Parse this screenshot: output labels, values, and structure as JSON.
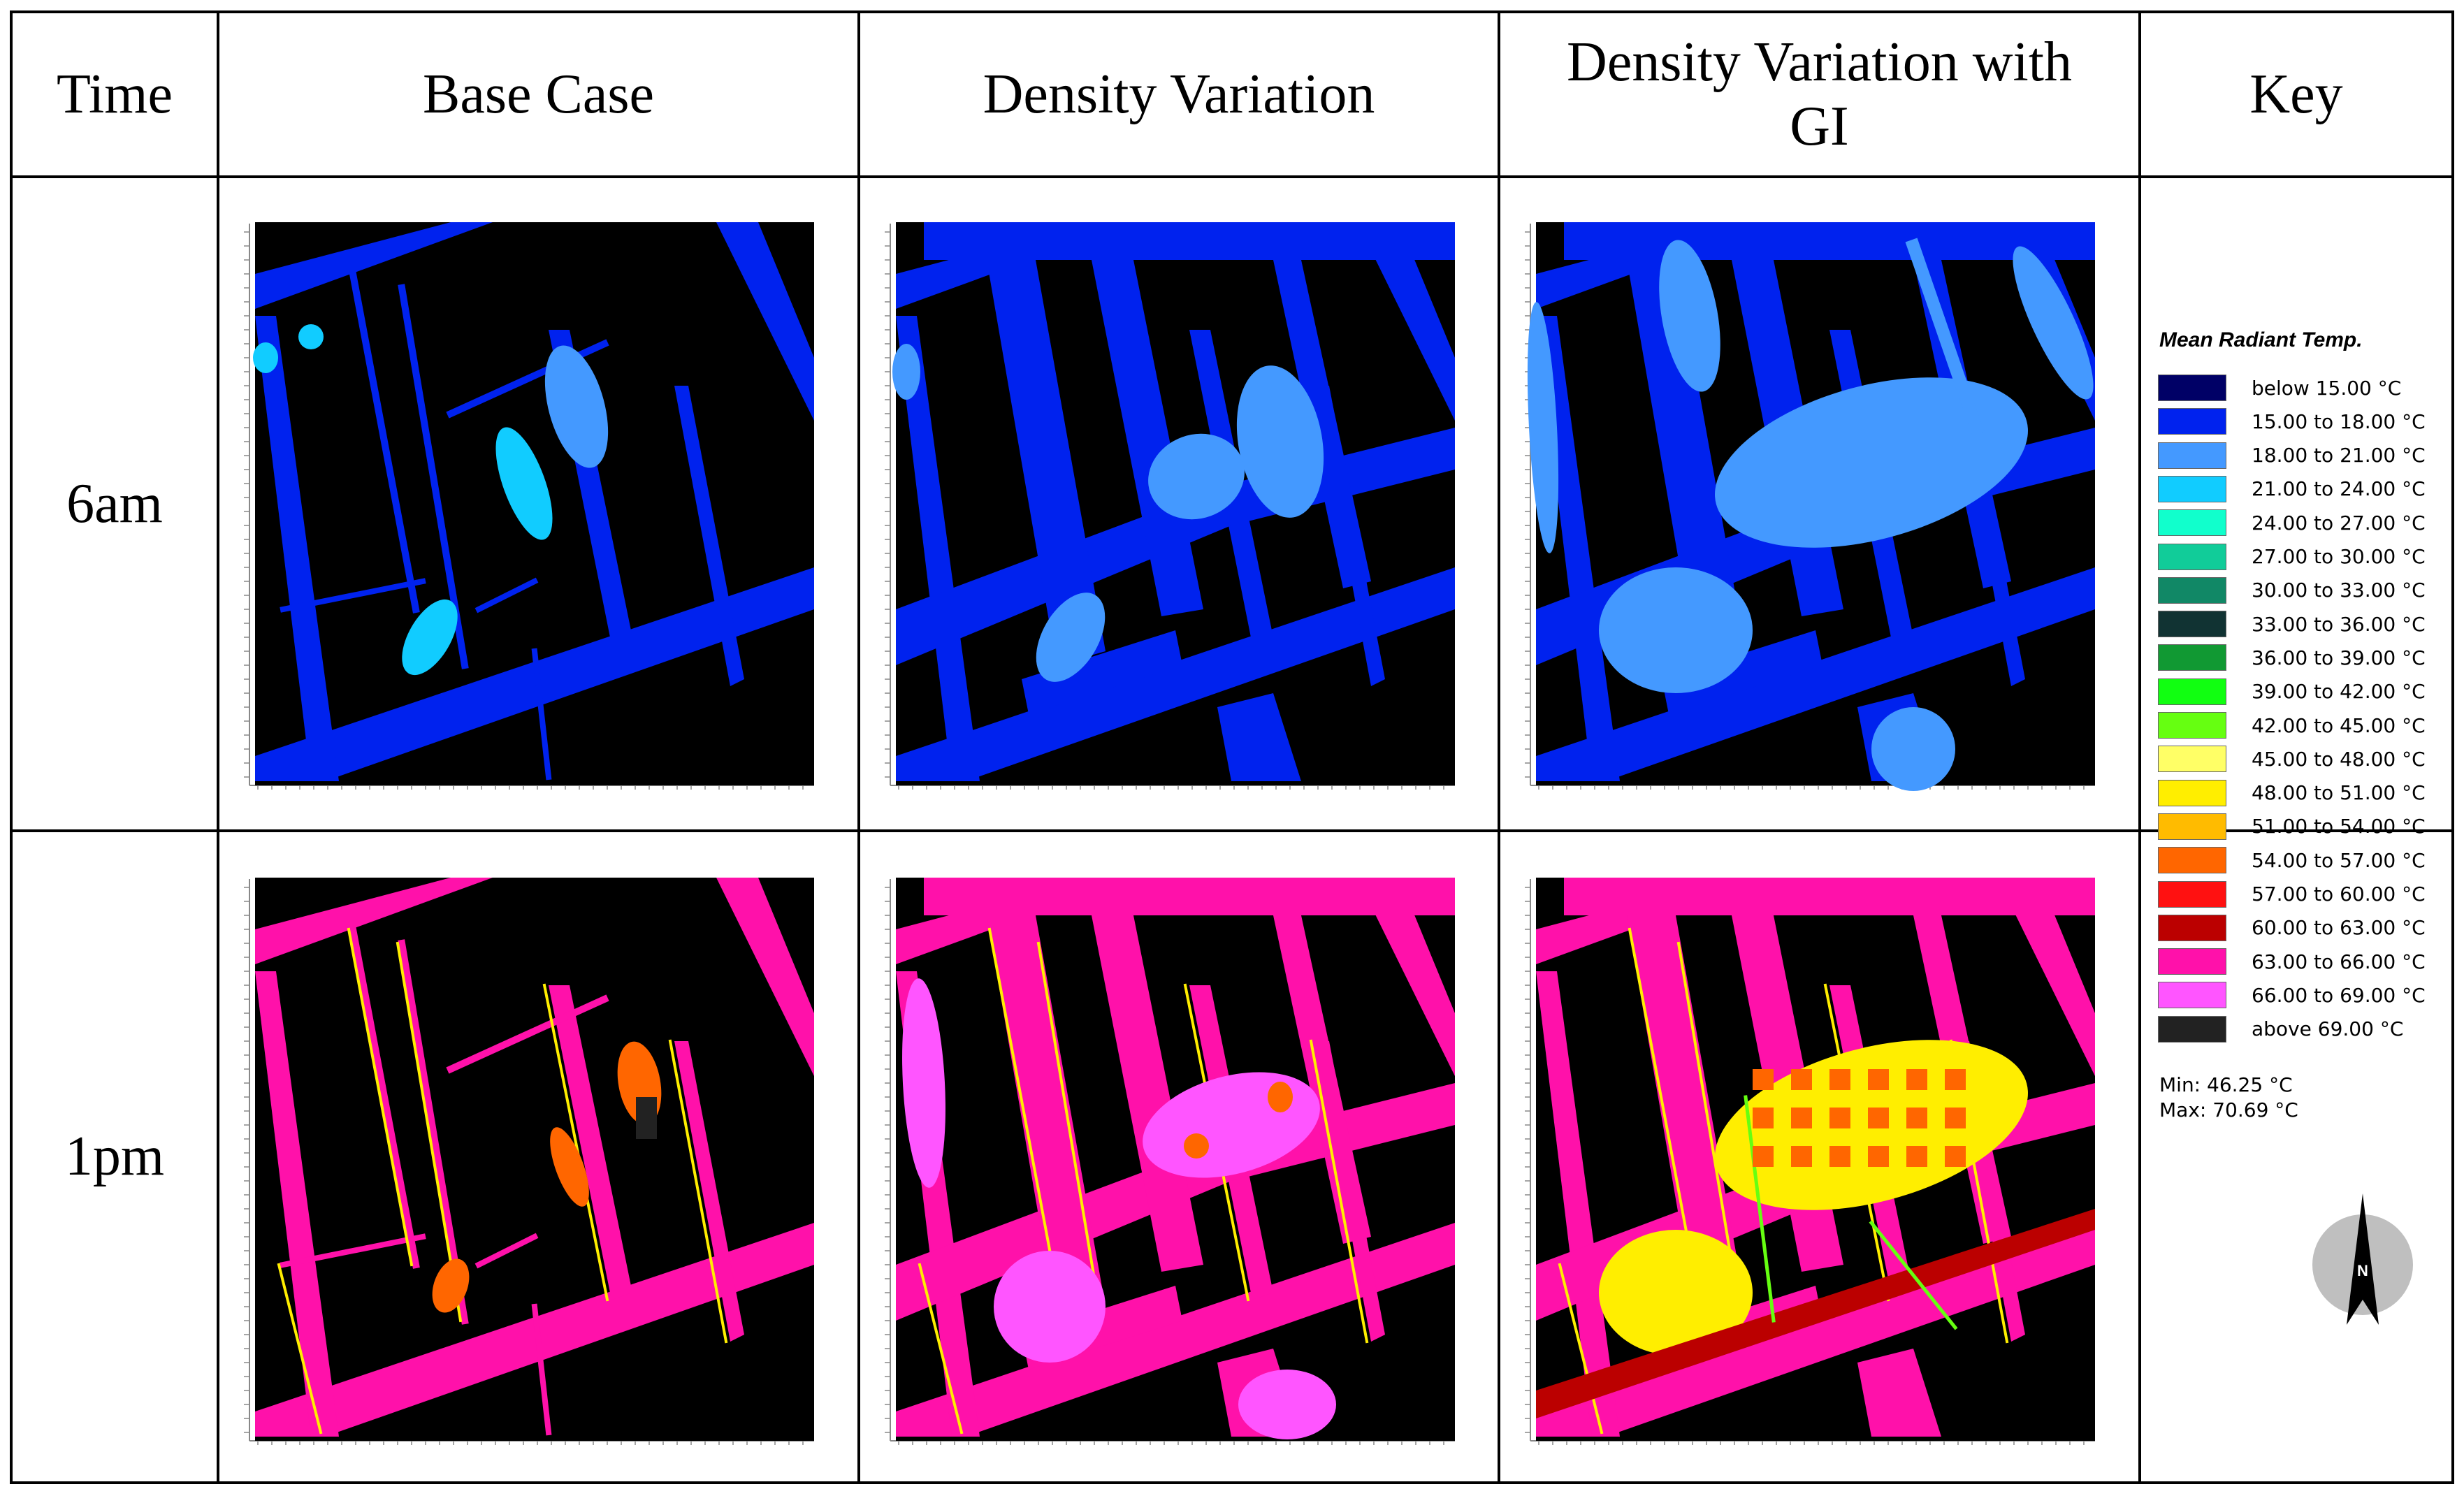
{
  "headers": {
    "time": "Time",
    "base_case": "Base Case",
    "density_variation": "Density Variation",
    "density_variation_gi": "Density Variation with GI",
    "key": "Key"
  },
  "rows": [
    {
      "label": "6am"
    },
    {
      "label": "1pm"
    }
  ],
  "legend": {
    "title": "Mean Radiant Temp.",
    "items": [
      {
        "label": "below 15.00 °C",
        "color": "#000066"
      },
      {
        "label": "15.00 to 18.00 °C",
        "color": "#0022ee"
      },
      {
        "label": "18.00 to 21.00 °C",
        "color": "#4499ff"
      },
      {
        "label": "21.00 to 24.00 °C",
        "color": "#11ccff"
      },
      {
        "label": "24.00 to 27.00 °C",
        "color": "#11ffcc"
      },
      {
        "label": "27.00 to 30.00 °C",
        "color": "#11cc99"
      },
      {
        "label": "30.00 to 33.00 °C",
        "color": "#118866"
      },
      {
        "label": "33.00 to 36.00 °C",
        "color": "#113333"
      },
      {
        "label": "36.00 to 39.00 °C",
        "color": "#119933"
      },
      {
        "label": "39.00 to 42.00 °C",
        "color": "#11ff11"
      },
      {
        "label": "42.00 to 45.00 °C",
        "color": "#66ff11"
      },
      {
        "label": "45.00 to 48.00 °C",
        "color": "#ffff66"
      },
      {
        "label": "48.00 to 51.00 °C",
        "color": "#ffee00"
      },
      {
        "label": "51.00 to 54.00 °C",
        "color": "#ffbb00"
      },
      {
        "label": "54.00 to 57.00 °C",
        "color": "#ff6600"
      },
      {
        "label": "57.00 to 60.00 °C",
        "color": "#ff1111"
      },
      {
        "label": "60.00 to 63.00 °C",
        "color": "#bb0000"
      },
      {
        "label": "63.00 to 66.00 °C",
        "color": "#ff11aa"
      },
      {
        "label": "66.00 to 69.00 °C",
        "color": "#ff55ff"
      },
      {
        "label": "above 69.00 °C",
        "color": "#222222"
      }
    ],
    "min": "Min: 46.25 °C",
    "max": "Max: 70.69 °C"
  },
  "north_label": "N",
  "colors": {
    "building": "#000000",
    "morning_ground": "#0022ee",
    "morning_shade": "#4499ff",
    "morning_veg": "#11ccff",
    "afternoon_ground": "#ff11aa",
    "afternoon_hot": "#ff55ff",
    "edge_yellow": "#ffee00",
    "edge_orange": "#ff6600",
    "dark_red": "#bb0000",
    "green_edge": "#66ff11"
  }
}
